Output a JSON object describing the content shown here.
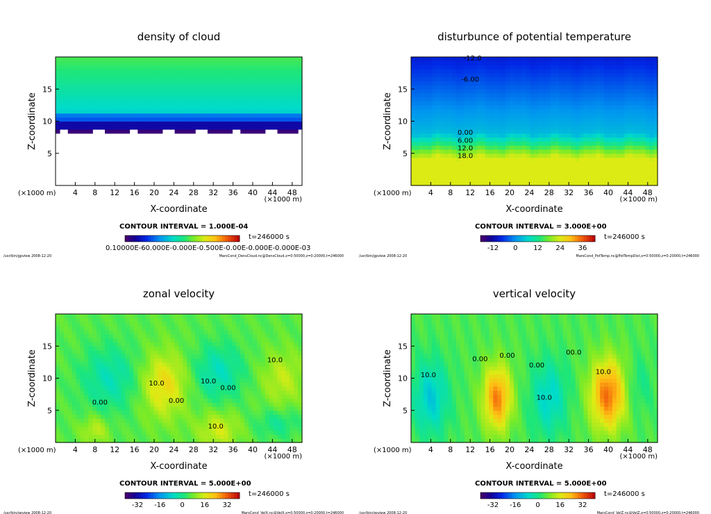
{
  "colors": {
    "axis": "#000000",
    "background": "#ffffff"
  },
  "common": {
    "xlabel": "X-coordinate",
    "ylabel": "Z-coordinate",
    "x_unit_left": "(×1000 m)",
    "x_unit_right": "(×1000 m)",
    "time": "t=246000 s",
    "footer_left": "/usr/bin/gpview   2008-12-20"
  },
  "chart_data": [
    {
      "type": "heatmap",
      "id": "p1",
      "title": "density of cloud",
      "field": "cloud",
      "xlim": [
        0,
        50
      ],
      "ylim": [
        0,
        20
      ],
      "xticks": [
        "4",
        "8",
        "12",
        "16",
        "20",
        "24",
        "28",
        "32",
        "36",
        "40",
        "44",
        "48"
      ],
      "yticks": [
        "5",
        "10",
        "15"
      ],
      "contour_interval": "CONTOUR INTERVAL = 1.000E-04",
      "colorbar_ticks": [
        "0.10000E-60.000E-0.000E-0.500E-0.00E-0.000E-0.000E-03"
      ],
      "footer_right": "MarsCond_DensCloud.nc@DensCloud,x=0:50000,z=0:20000,t=246000",
      "contour_labels": []
    },
    {
      "type": "heatmap",
      "id": "p2",
      "title": "disturbunce of potential temperature",
      "field": "temp",
      "xlim": [
        0,
        50
      ],
      "ylim": [
        0,
        20
      ],
      "xticks": [
        "4",
        "8",
        "12",
        "16",
        "20",
        "24",
        "28",
        "32",
        "36",
        "40",
        "44",
        "48"
      ],
      "yticks": [
        "5",
        "10",
        "15"
      ],
      "contour_interval": "CONTOUR INTERVAL = 3.000E+00",
      "colorbar_ticks": [
        "-12",
        "0",
        "12",
        "24",
        "36"
      ],
      "footer_right": "MarsCond_PotTemp.nc@PotTempDist,x=0:50000,z=0:20000,t=246000",
      "contour_labels": [
        {
          "text": "-12.0",
          "x": 12.5,
          "z": 19.8
        },
        {
          "text": "-6.00",
          "x": 12.0,
          "z": 16.5
        },
        {
          "text": "0.00",
          "x": 11.0,
          "z": 8.2
        },
        {
          "text": "6.00",
          "x": 11.0,
          "z": 7.0
        },
        {
          "text": "12.0",
          "x": 11.0,
          "z": 5.8
        },
        {
          "text": "18.0",
          "x": 11.0,
          "z": 4.6
        }
      ]
    },
    {
      "type": "heatmap",
      "id": "p3",
      "title": "zonal velocity",
      "field": "zonal",
      "xlim": [
        0,
        50
      ],
      "ylim": [
        0,
        20
      ],
      "xticks": [
        "4",
        "8",
        "12",
        "16",
        "20",
        "24",
        "28",
        "32",
        "36",
        "40",
        "44",
        "48"
      ],
      "yticks": [
        "5",
        "10",
        "15"
      ],
      "contour_interval": "CONTOUR INTERVAL = 5.000E+00",
      "colorbar_ticks": [
        "-32",
        "-16",
        "0",
        "16",
        "32"
      ],
      "footer_right": "MarsCond_VelX.nc@VelX,x=0:50000,z=0:20000,t=246000",
      "contour_labels": [
        {
          "text": "0.00",
          "x": 9.0,
          "z": 6.2
        },
        {
          "text": "10.0",
          "x": 20.5,
          "z": 9.2
        },
        {
          "text": "0.00",
          "x": 24.5,
          "z": 6.5
        },
        {
          "text": "10.0",
          "x": 31.0,
          "z": 9.5
        },
        {
          "text": "0.00",
          "x": 35.0,
          "z": 8.5
        },
        {
          "text": "10.0",
          "x": 44.5,
          "z": 12.8
        },
        {
          "text": "10.0",
          "x": 32.5,
          "z": 2.5
        }
      ]
    },
    {
      "type": "heatmap",
      "id": "p4",
      "title": "vertical velocity",
      "field": "vertical",
      "xlim": [
        0,
        50
      ],
      "ylim": [
        0,
        20
      ],
      "xticks": [
        "4",
        "8",
        "12",
        "16",
        "20",
        "24",
        "28",
        "32",
        "36",
        "40",
        "44",
        "48"
      ],
      "yticks": [
        "5",
        "10",
        "15"
      ],
      "contour_interval": "CONTOUR INTERVAL = 5.000E+00",
      "colorbar_ticks": [
        "-32",
        "-16",
        "0",
        "16",
        "32"
      ],
      "footer_right": "MarsCond_VelZ.nc@VelZ,x=0:50000,z=0:20000,t=246000",
      "contour_labels": [
        {
          "text": "10.0",
          "x": 3.5,
          "z": 10.5
        },
        {
          "text": "0.00",
          "x": 14.0,
          "z": 13.0
        },
        {
          "text": "0.00",
          "x": 19.5,
          "z": 13.5
        },
        {
          "text": "0.00",
          "x": 25.5,
          "z": 12.0
        },
        {
          "text": "10.0",
          "x": 27.0,
          "z": 7.0
        },
        {
          "text": "00.0",
          "x": 33.0,
          "z": 14.0
        },
        {
          "text": "10.0",
          "x": 39.0,
          "z": 11.0
        }
      ]
    }
  ]
}
